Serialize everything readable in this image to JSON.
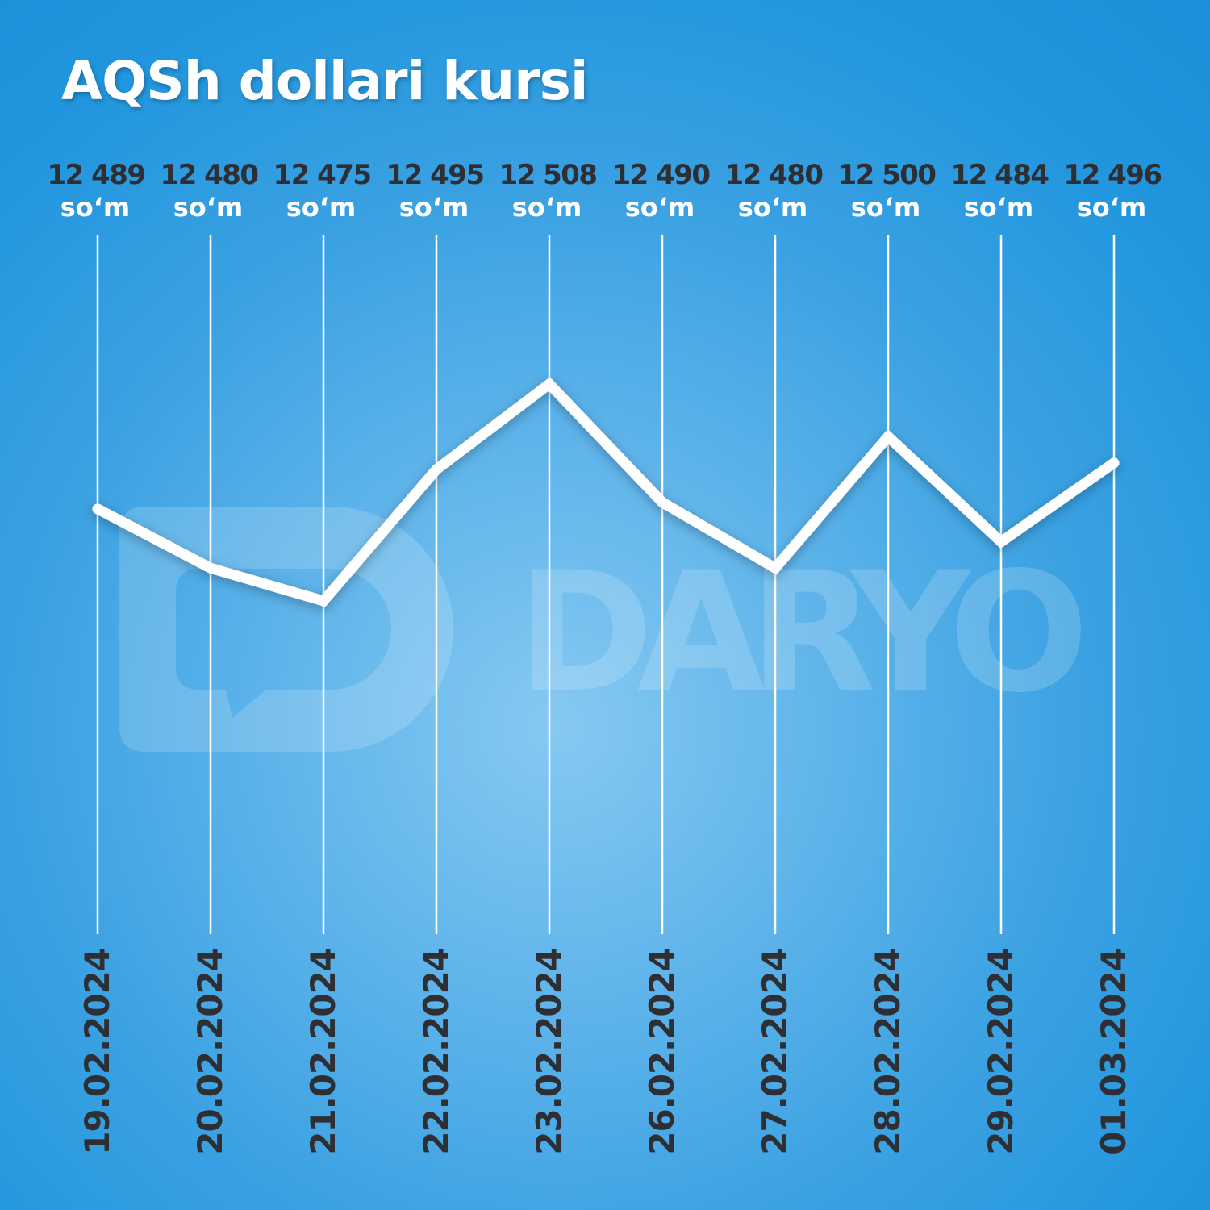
{
  "title": "AQSh dollari kursi",
  "watermark": "DARYO",
  "chart_data": {
    "type": "line",
    "title": "AQSh dollari kursi",
    "unit": "so‘m",
    "categories": [
      "19.02.2024",
      "20.02.2024",
      "21.02.2024",
      "22.02.2024",
      "23.02.2024",
      "26.02.2024",
      "27.02.2024",
      "28.02.2024",
      "29.02.2024",
      "01.03.2024"
    ],
    "values": [
      12489,
      12480,
      12475,
      12495,
      12508,
      12490,
      12480,
      12500,
      12484,
      12496
    ],
    "value_labels": [
      "12 489",
      "12 480",
      "12 475",
      "12 495",
      "12 508",
      "12 490",
      "12 480",
      "12 500",
      "12 484",
      "12 496"
    ],
    "line_color": "#ffffff",
    "label_color": "#2e2e33",
    "background_color": "#2196de",
    "grid": "vertical lines"
  }
}
